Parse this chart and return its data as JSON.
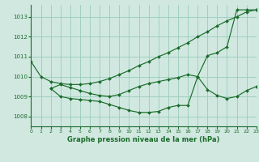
{
  "title": "Graphe pression niveau de la mer (hPa)",
  "bg_color": "#d0e8e0",
  "grid_color": "#99ccbb",
  "line_color": "#1a6b2a",
  "xlim": [
    0,
    23
  ],
  "ylim": [
    1007.5,
    1013.6
  ],
  "yticks": [
    1008,
    1009,
    1010,
    1011,
    1012,
    1013
  ],
  "xticks": [
    0,
    1,
    2,
    3,
    4,
    5,
    6,
    7,
    8,
    9,
    10,
    11,
    12,
    13,
    14,
    15,
    16,
    17,
    18,
    19,
    20,
    21,
    22,
    23
  ],
  "series": [
    {
      "x": [
        0,
        1,
        2,
        3,
        4,
        5,
        6,
        7,
        8,
        9,
        10,
        11,
        12,
        13,
        14,
        15,
        16,
        17,
        18,
        19,
        20,
        21,
        22,
        23
      ],
      "y": [
        1010.75,
        1010.0,
        1009.75,
        1009.65,
        1009.6,
        1009.6,
        1009.65,
        1009.75,
        1009.9,
        1010.1,
        1010.3,
        1010.55,
        1010.75,
        1011.0,
        1011.2,
        1011.45,
        1011.7,
        1012.0,
        1012.25,
        1012.55,
        1012.8,
        1013.0,
        1013.25,
        1013.35
      ]
    },
    {
      "x": [
        2,
        3,
        4,
        5,
        6,
        7,
        8,
        9,
        10,
        11,
        12,
        13,
        14,
        15,
        16,
        17,
        18,
        19,
        20,
        21,
        22,
        23
      ],
      "y": [
        1009.4,
        1009.6,
        1009.45,
        1009.3,
        1009.15,
        1009.05,
        1009.0,
        1009.1,
        1009.3,
        1009.5,
        1009.65,
        1009.75,
        1009.85,
        1009.95,
        1010.1,
        1010.0,
        1011.05,
        1011.2,
        1011.5,
        1013.35,
        1013.35,
        1013.35
      ]
    },
    {
      "x": [
        2,
        3,
        4,
        5,
        6,
        7,
        8,
        9,
        10,
        11,
        12,
        13,
        14,
        15,
        16,
        17,
        18,
        19,
        20,
        21,
        22,
        23
      ],
      "y": [
        1009.4,
        1009.0,
        1008.9,
        1008.85,
        1008.8,
        1008.75,
        1008.6,
        1008.45,
        1008.3,
        1008.2,
        1008.2,
        1008.25,
        1008.45,
        1008.55,
        1008.55,
        1010.0,
        1009.35,
        1009.05,
        1008.9,
        1009.0,
        1009.3,
        1009.5
      ]
    }
  ]
}
